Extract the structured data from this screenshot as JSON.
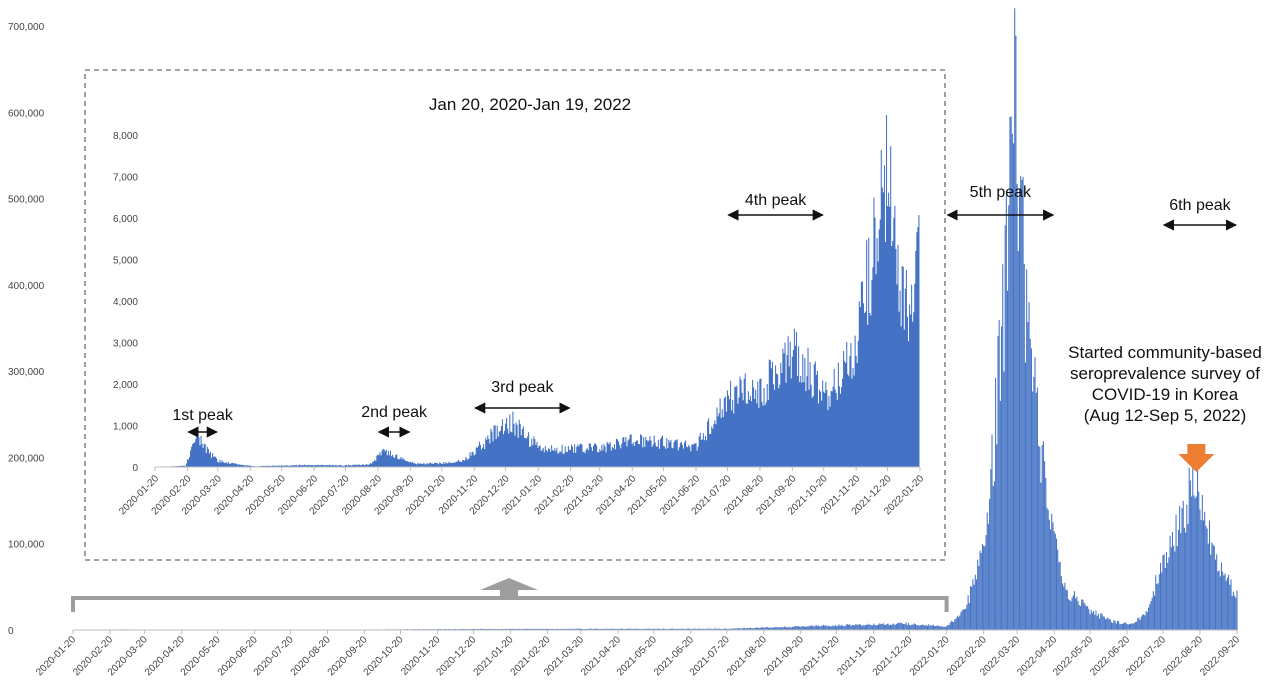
{
  "chart_data": [
    {
      "type": "bar",
      "title": "",
      "xlabel": "",
      "ylabel": "",
      "ylim": [
        0,
        700000
      ],
      "yticks": [
        "0",
        "100,000",
        "200,000",
        "300,000",
        "400,000",
        "500,000",
        "600,000",
        "700,000"
      ],
      "x_range": [
        "2020-01-20",
        "2022-09-20"
      ],
      "xticks": [
        "2020-01-20",
        "2020-02-20",
        "2020-03-20",
        "2020-04-20",
        "2020-05-20",
        "2020-06-20",
        "2020-07-20",
        "2020-08-20",
        "2020-09-20",
        "2020-10-20",
        "2020-11-20",
        "2020-12-20",
        "2021-01-20",
        "2021-02-20",
        "2021-03-20",
        "2021-04-20",
        "2021-05-20",
        "2021-06-20",
        "2021-07-20",
        "2021-08-20",
        "2021-09-20",
        "2021-10-20",
        "2021-11-20",
        "2021-12-20",
        "2022-01-20",
        "2022-02-20",
        "2022-03-20",
        "2022-04-20",
        "2022-05-20",
        "2022-06-20",
        "2022-07-20",
        "2022-08-20",
        "2022-09-20"
      ],
      "series": [
        {
          "color": "#4472c4",
          "points": [
            [
              "2020-01-20",
              0
            ],
            [
              "2020-03-01",
              700
            ],
            [
              "2020-04-20",
              100
            ],
            [
              "2020-08-27",
              400
            ],
            [
              "2020-12-25",
              1200
            ],
            [
              "2021-07-20",
              1500
            ],
            [
              "2021-12-15",
              7500
            ],
            [
              "2022-01-20",
              4000
            ],
            [
              "2022-02-05",
              25000
            ],
            [
              "2022-02-20",
              100000
            ],
            [
              "2022-03-01",
              220000
            ],
            [
              "2022-03-10",
              400000
            ],
            [
              "2022-03-17",
              620000
            ],
            [
              "2022-03-24",
              450000
            ],
            [
              "2022-04-01",
              300000
            ],
            [
              "2022-04-10",
              190000
            ],
            [
              "2022-04-20",
              100000
            ],
            [
              "2022-05-01",
              45000
            ],
            [
              "2022-05-20",
              22000
            ],
            [
              "2022-06-10",
              9000
            ],
            [
              "2022-06-25",
              7000
            ],
            [
              "2022-07-05",
              18000
            ],
            [
              "2022-07-20",
              75000
            ],
            [
              "2022-08-05",
              130000
            ],
            [
              "2022-08-17",
              180000
            ],
            [
              "2022-08-25",
              125000
            ],
            [
              "2022-09-05",
              75000
            ],
            [
              "2022-09-20",
              40000
            ]
          ]
        }
      ],
      "annotations": [
        {
          "text": "5th peak",
          "from": "2022-01-20",
          "to": "2022-04-20"
        },
        {
          "text": "6th peak",
          "from": "2022-07-20",
          "to": "2022-09-20"
        }
      ],
      "survey_note": {
        "lines": [
          "Started community-based",
          "seroprevalence survey of",
          "COVID-19 in Korea",
          "(Aug 12-Sep 5, 2022)"
        ],
        "date": "2022-08-17",
        "arrow_color": "#ed7d31"
      },
      "bracket_color": "#9e9e9e",
      "grid": false,
      "legend": "none"
    },
    {
      "type": "bar",
      "title": "Jan 20, 2020-Jan 19, 2022",
      "xlabel": "",
      "ylabel": "",
      "ylim": [
        0,
        8000
      ],
      "yticks": [
        "0",
        "1,000",
        "2,000",
        "3,000",
        "4,000",
        "5,000",
        "6,000",
        "7,000",
        "8,000"
      ],
      "x_range": [
        "2020-01-20",
        "2022-01-19"
      ],
      "xticks": [
        "2020-01-20",
        "2020-02-20",
        "2020-03-20",
        "2020-04-20",
        "2020-05-20",
        "2020-06-20",
        "2020-07-20",
        "2020-08-20",
        "2020-09-20",
        "2020-10-20",
        "2020-11-20",
        "2020-12-20",
        "2021-01-20",
        "2021-02-20",
        "2021-03-20",
        "2021-04-20",
        "2021-05-20",
        "2021-06-20",
        "2021-07-20",
        "2021-08-20",
        "2021-09-20",
        "2021-10-20",
        "2021-11-20",
        "2021-12-20",
        "2022-01-20"
      ],
      "series": [
        {
          "color": "#4472c4",
          "points": [
            [
              "2020-01-20",
              0
            ],
            [
              "2020-02-18",
              30
            ],
            [
              "2020-02-26",
              500
            ],
            [
              "2020-03-01",
              750
            ],
            [
              "2020-03-07",
              450
            ],
            [
              "2020-03-20",
              150
            ],
            [
              "2020-04-10",
              60
            ],
            [
              "2020-04-25",
              15
            ],
            [
              "2020-05-10",
              30
            ],
            [
              "2020-06-20",
              50
            ],
            [
              "2020-07-20",
              40
            ],
            [
              "2020-08-12",
              60
            ],
            [
              "2020-08-27",
              400
            ],
            [
              "2020-09-10",
              200
            ],
            [
              "2020-09-25",
              80
            ],
            [
              "2020-10-20",
              90
            ],
            [
              "2020-11-10",
              150
            ],
            [
              "2020-11-25",
              500
            ],
            [
              "2020-12-10",
              800
            ],
            [
              "2020-12-25",
              1150
            ],
            [
              "2021-01-10",
              700
            ],
            [
              "2021-01-25",
              400
            ],
            [
              "2021-02-20",
              450
            ],
            [
              "2021-03-20",
              450
            ],
            [
              "2021-04-20",
              650
            ],
            [
              "2021-05-20",
              600
            ],
            [
              "2021-06-20",
              500
            ],
            [
              "2021-07-10",
              1250
            ],
            [
              "2021-07-25",
              1750
            ],
            [
              "2021-08-20",
              1800
            ],
            [
              "2021-09-25",
              2700
            ],
            [
              "2021-10-20",
              1700
            ],
            [
              "2021-11-05",
              2200
            ],
            [
              "2021-11-20",
              3000
            ],
            [
              "2021-12-05",
              5000
            ],
            [
              "2021-12-15",
              7300
            ],
            [
              "2021-12-25",
              5800
            ],
            [
              "2022-01-05",
              4000
            ],
            [
              "2022-01-15",
              4200
            ],
            [
              "2022-01-19",
              6200
            ]
          ]
        }
      ],
      "annotations": [
        {
          "text": "1st peak",
          "from": "2020-02-20",
          "to": "2020-03-20"
        },
        {
          "text": "2nd peak",
          "from": "2020-08-20",
          "to": "2020-09-20"
        },
        {
          "text": "3rd peak",
          "from": "2020-11-20",
          "to": "2021-02-20"
        },
        {
          "text": "4th peak",
          "from": "2021-07-20",
          "to": "2021-10-20"
        }
      ],
      "border": "dashed",
      "grid": false,
      "legend": "none"
    }
  ]
}
